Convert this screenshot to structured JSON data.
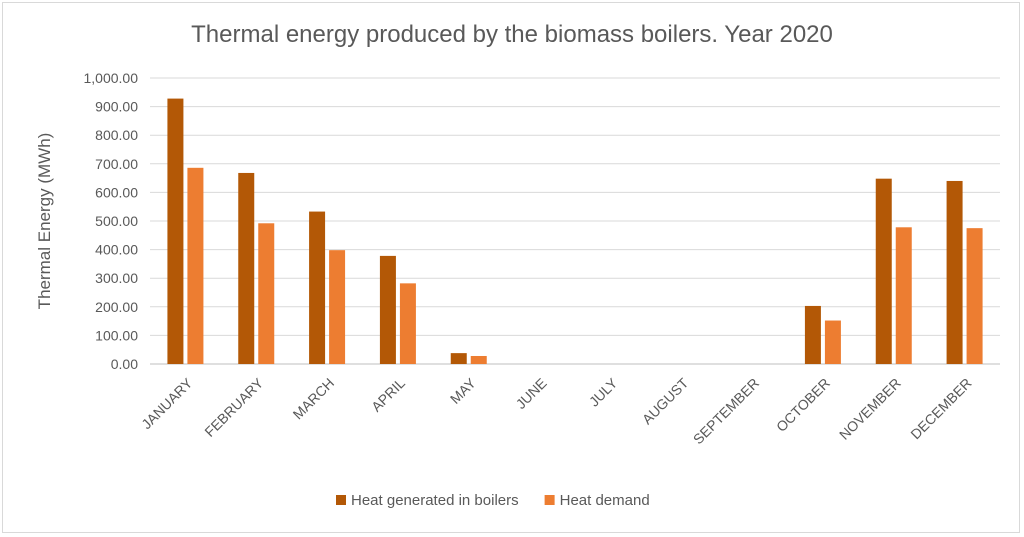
{
  "chart_data": {
    "type": "bar",
    "title": "Thermal energy produced by the biomass boilers. Year 2020",
    "xlabel": "",
    "ylabel": "Thermal Energy (MWh)",
    "ylim": [
      0,
      1000
    ],
    "yticks": [
      "0.00",
      "100.00",
      "200.00",
      "300.00",
      "400.00",
      "500.00",
      "600.00",
      "700.00",
      "800.00",
      "900.00",
      "1,000.00"
    ],
    "grid": true,
    "legend_position": "bottom",
    "categories": [
      "JANUARY",
      "FEBRUARY",
      "MARCH",
      "APRIL",
      "MAY",
      "JUNE",
      "JULY",
      "AUGUST",
      "SEPTEMBER",
      "OCTOBER",
      "NOVEMBER",
      "DECEMBER"
    ],
    "series": [
      {
        "name": "Heat generated in boilers",
        "color": "#b35806",
        "values": [
          928,
          668,
          533,
          378,
          38,
          0,
          0,
          0,
          0,
          203,
          648,
          640
        ]
      },
      {
        "name": "Heat demand",
        "color": "#ed7d31",
        "values": [
          686,
          492,
          398,
          282,
          28,
          0,
          0,
          0,
          0,
          152,
          478,
          475
        ]
      }
    ]
  }
}
